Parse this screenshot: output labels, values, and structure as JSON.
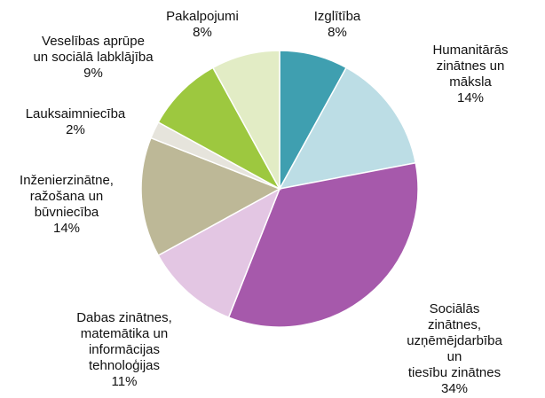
{
  "chart_data": {
    "type": "pie",
    "categories": [
      "Izglītība",
      "Humanitārās\nzinātnes un māksla",
      "Sociālās zinātnes,\nuzņēmējdarbība  un\ntiesību zinātnes",
      "Dabas zinātnes,\nmatemātika un\ninformācijas\ntehnoloģijas",
      "Inženierzinātne,\nražošana un\nbūvniecība",
      "Lauksaimniecība",
      "Veselības aprūpe\nun sociālā labklājība",
      "Pakalpojumi"
    ],
    "values": [
      8,
      14,
      34,
      11,
      14,
      2,
      9,
      8
    ],
    "value_labels": [
      "8%",
      "14%",
      "34%",
      "11%",
      "14%",
      "2%",
      "9%",
      "8%"
    ],
    "colors": [
      "#3f9fb0",
      "#bcdde5",
      "#a659ab",
      "#e3c6e3",
      "#bdb897",
      "#e6e4dc",
      "#9dc83f",
      "#e2ecc5"
    ]
  }
}
